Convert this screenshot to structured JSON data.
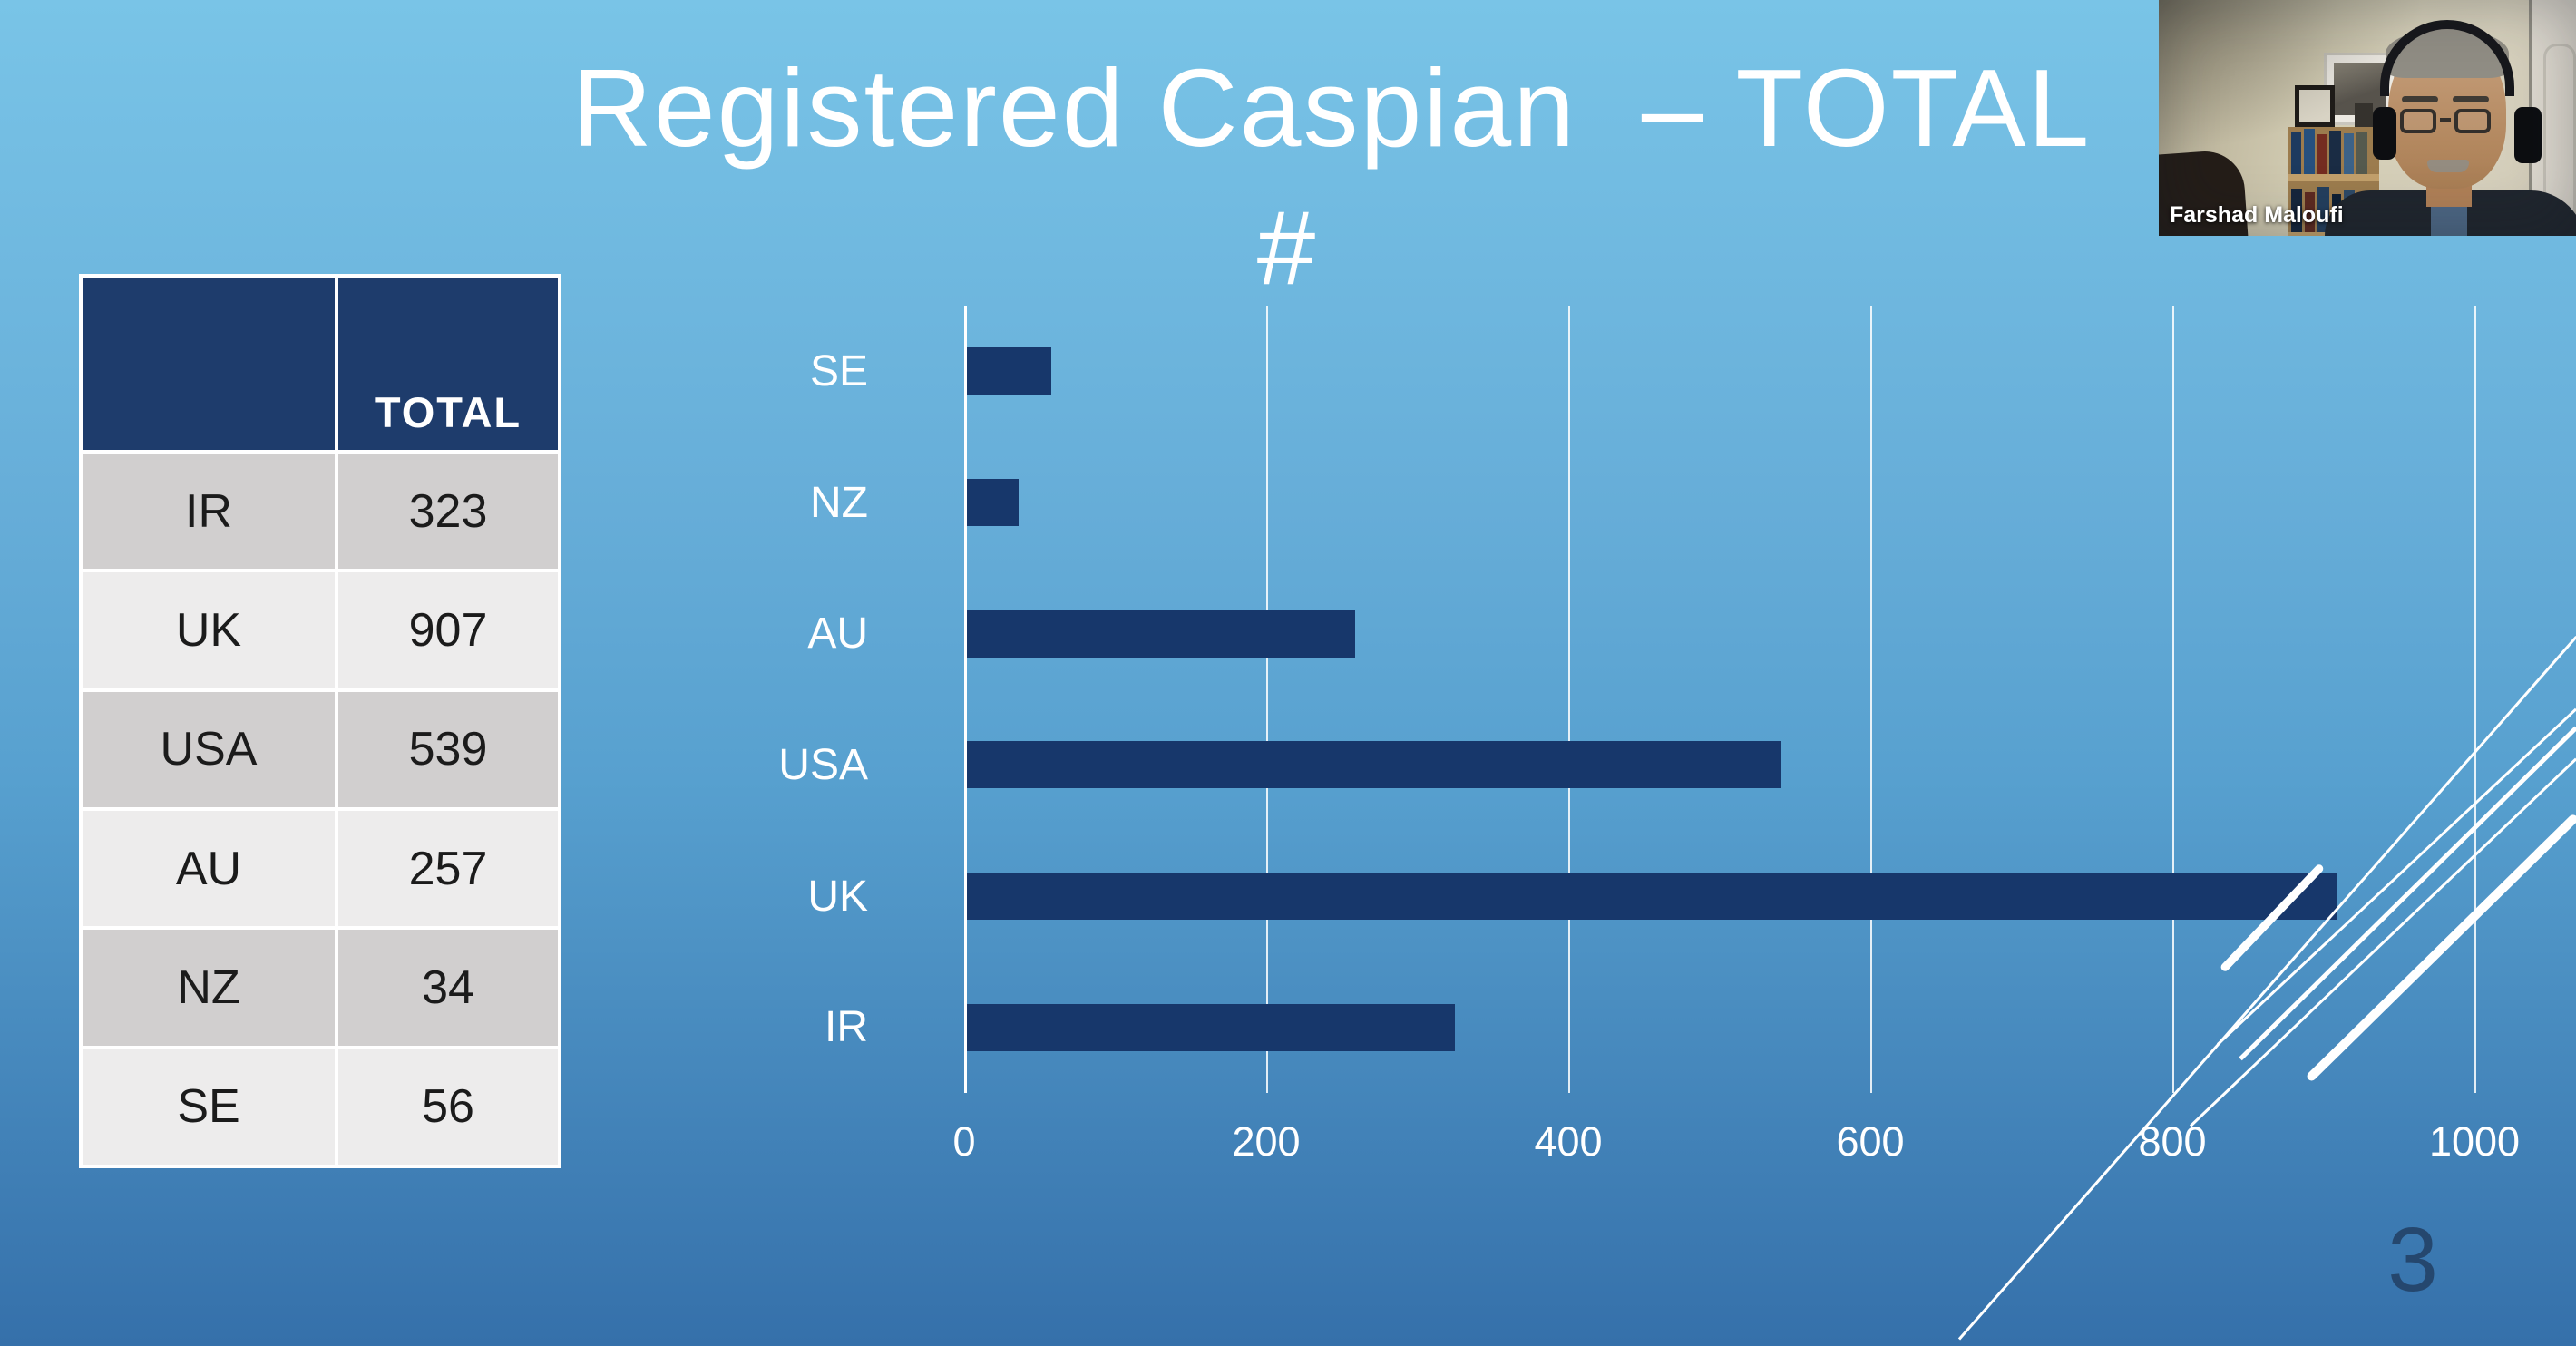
{
  "slide": {
    "title": "Registered Caspian  – TOTAL",
    "page_number": "3"
  },
  "table": {
    "header": {
      "col1": "",
      "col2": "TOTAL"
    },
    "rows": [
      {
        "country": "IR",
        "total": "323"
      },
      {
        "country": "UK",
        "total": "907"
      },
      {
        "country": "USA",
        "total": "539"
      },
      {
        "country": "AU",
        "total": "257"
      },
      {
        "country": "NZ",
        "total": "34"
      },
      {
        "country": "SE",
        "total": "56"
      }
    ]
  },
  "chart_data": {
    "type": "bar",
    "orientation": "horizontal",
    "title": "#",
    "categories": [
      "SE",
      "NZ",
      "AU",
      "USA",
      "UK",
      "IR"
    ],
    "values": [
      56,
      34,
      257,
      539,
      907,
      323
    ],
    "xlabel": "",
    "ylabel": "",
    "xlim": [
      0,
      1000
    ],
    "x_ticks": [
      0,
      200,
      400,
      600,
      800,
      1000
    ],
    "grid": true,
    "legend": false,
    "bar_color": "#17376b"
  },
  "webcam": {
    "participant_name": "Farshad Maloufi"
  },
  "colors": {
    "bar": "#17376b",
    "table_header": "#1e3c6c",
    "table_row_odd": "#d1cfcf",
    "table_row_even": "#edecec",
    "chart_text": "#ffffff",
    "page_number": "#25476e",
    "background_top": "#79c4e7",
    "background_bottom": "#3570aa"
  }
}
